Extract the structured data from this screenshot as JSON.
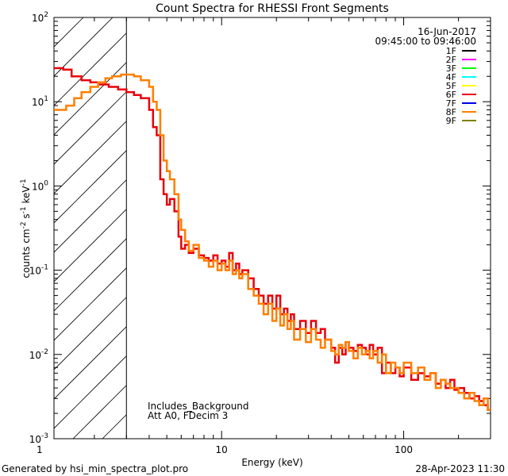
{
  "chart_data": {
    "type": "line",
    "title": "Count Spectra for RHESSI Front Segments",
    "xlabel": "Energy (keV)",
    "ylabel": "counts cm",
    "ylabel_exp1": "-2",
    "ylabel_mid": " s",
    "ylabel_exp2": "-1",
    "ylabel_mid2": " keV",
    "ylabel_exp3": "-1",
    "xscale": "log",
    "yscale": "log",
    "xlim": [
      1.2,
      300
    ],
    "ylim": [
      0.001,
      100
    ],
    "x_ticks": [
      {
        "value": 1,
        "label": "1"
      },
      {
        "value": 10,
        "label": "10"
      },
      {
        "value": 100,
        "label": "100"
      }
    ],
    "y_ticks": [
      {
        "value": 100,
        "base": "10",
        "exp": "2"
      },
      {
        "value": 10,
        "base": "10",
        "exp": "1"
      },
      {
        "value": 1,
        "base": "10",
        "exp": "0"
      },
      {
        "value": 0.1,
        "base": "10",
        "exp": "-1"
      },
      {
        "value": 0.01,
        "base": "10",
        "exp": "-2"
      },
      {
        "value": 0.001,
        "base": "10",
        "exp": "-3"
      }
    ],
    "date_label": "16-Jun-2017",
    "time_range_label": "09:45:00 to 09:46:00",
    "threshold_energy": 3,
    "annotation_lines": [
      "Includes_Background",
      "Att A0, FDecim 3"
    ],
    "legend": [
      {
        "name": "1F",
        "color": "#000000"
      },
      {
        "name": "2F",
        "color": "#ff00ff"
      },
      {
        "name": "3F",
        "color": "#00ff00"
      },
      {
        "name": "4F",
        "color": "#00ffff"
      },
      {
        "name": "5F",
        "color": "#ffff00"
      },
      {
        "name": "6F",
        "color": "#e8000b"
      },
      {
        "name": "7F",
        "color": "#0000e6"
      },
      {
        "name": "8F",
        "color": "#ff7f00"
      },
      {
        "name": "9F",
        "color": "#808000"
      }
    ],
    "series": [
      {
        "name": "6F",
        "color": "#e8000b",
        "points": [
          [
            1.2,
            25
          ],
          [
            1.35,
            24
          ],
          [
            1.5,
            20
          ],
          [
            1.7,
            18
          ],
          [
            1.9,
            17
          ],
          [
            2.1,
            16
          ],
          [
            2.4,
            15
          ],
          [
            2.7,
            14
          ],
          [
            3.0,
            13
          ],
          [
            3.3,
            12
          ],
          [
            3.6,
            11
          ],
          [
            4.0,
            8
          ],
          [
            4.2,
            5
          ],
          [
            4.4,
            4
          ],
          [
            4.6,
            1.2
          ],
          [
            4.8,
            0.8
          ],
          [
            5.0,
            0.6
          ],
          [
            5.2,
            0.7
          ],
          [
            5.5,
            0.5
          ],
          [
            5.8,
            0.25
          ],
          [
            6.0,
            0.18
          ],
          [
            6.3,
            0.2
          ],
          [
            6.6,
            0.16
          ],
          [
            7.0,
            0.18
          ],
          [
            7.5,
            0.15
          ],
          [
            8.0,
            0.14
          ],
          [
            8.5,
            0.13
          ],
          [
            9.0,
            0.15
          ],
          [
            9.5,
            0.12
          ],
          [
            10,
            0.13
          ],
          [
            10.5,
            0.11
          ],
          [
            11,
            0.16
          ],
          [
            11.5,
            0.1
          ],
          [
            12,
            0.12
          ],
          [
            12.5,
            0.09
          ],
          [
            13,
            0.1
          ],
          [
            14,
            0.08
          ],
          [
            15,
            0.06
          ],
          [
            16,
            0.05
          ],
          [
            17,
            0.04
          ],
          [
            18,
            0.05
          ],
          [
            19,
            0.035
          ],
          [
            20,
            0.05
          ],
          [
            21,
            0.03
          ],
          [
            22,
            0.035
          ],
          [
            23,
            0.025
          ],
          [
            24,
            0.03
          ],
          [
            25,
            0.02
          ],
          [
            27,
            0.025
          ],
          [
            29,
            0.018
          ],
          [
            31,
            0.025
          ],
          [
            33,
            0.018
          ],
          [
            35,
            0.02
          ],
          [
            37,
            0.015
          ],
          [
            40,
            0.012
          ],
          [
            42,
            0.008
          ],
          [
            44,
            0.012
          ],
          [
            46,
            0.01
          ],
          [
            48,
            0.014
          ],
          [
            50,
            0.012
          ],
          [
            53,
            0.011
          ],
          [
            56,
            0.013
          ],
          [
            59,
            0.012
          ],
          [
            62,
            0.01
          ],
          [
            65,
            0.013
          ],
          [
            68,
            0.01
          ],
          [
            72,
            0.012
          ],
          [
            76,
            0.006
          ],
          [
            80,
            0.008
          ],
          [
            85,
            0.006
          ],
          [
            90,
            0.007
          ],
          [
            95,
            0.0055
          ],
          [
            100,
            0.007
          ],
          [
            110,
            0.005
          ],
          [
            120,
            0.006
          ],
          [
            130,
            0.0055
          ],
          [
            140,
            0.006
          ],
          [
            150,
            0.0045
          ],
          [
            160,
            0.005
          ],
          [
            170,
            0.004
          ],
          [
            180,
            0.005
          ],
          [
            190,
            0.0038
          ],
          [
            200,
            0.004
          ],
          [
            215,
            0.0035
          ],
          [
            230,
            0.003
          ],
          [
            245,
            0.0032
          ],
          [
            260,
            0.0028
          ],
          [
            275,
            0.0025
          ],
          [
            290,
            0.0022
          ]
        ]
      },
      {
        "name": "8F",
        "color": "#ff7f00",
        "points": [
          [
            1.2,
            8
          ],
          [
            1.4,
            9
          ],
          [
            1.55,
            11
          ],
          [
            1.7,
            13
          ],
          [
            1.9,
            15
          ],
          [
            2.1,
            17
          ],
          [
            2.3,
            19
          ],
          [
            2.5,
            20
          ],
          [
            2.8,
            21
          ],
          [
            3.0,
            21
          ],
          [
            3.3,
            20
          ],
          [
            3.6,
            18
          ],
          [
            4.0,
            15
          ],
          [
            4.2,
            10
          ],
          [
            4.4,
            8
          ],
          [
            4.6,
            4
          ],
          [
            4.8,
            2
          ],
          [
            5.0,
            1.5
          ],
          [
            5.2,
            1.2
          ],
          [
            5.5,
            0.8
          ],
          [
            5.8,
            0.4
          ],
          [
            6.0,
            0.3
          ],
          [
            6.3,
            0.22
          ],
          [
            6.6,
            0.17
          ],
          [
            7.0,
            0.2
          ],
          [
            7.5,
            0.14
          ],
          [
            8.0,
            0.13
          ],
          [
            8.5,
            0.11
          ],
          [
            9.0,
            0.13
          ],
          [
            9.5,
            0.1
          ],
          [
            10,
            0.12
          ],
          [
            10.5,
            0.1
          ],
          [
            11,
            0.13
          ],
          [
            11.5,
            0.09
          ],
          [
            12,
            0.1
          ],
          [
            12.5,
            0.08
          ],
          [
            13,
            0.09
          ],
          [
            14,
            0.06
          ],
          [
            15,
            0.05
          ],
          [
            16,
            0.04
          ],
          [
            17,
            0.03
          ],
          [
            18,
            0.04
          ],
          [
            19,
            0.025
          ],
          [
            20,
            0.035
          ],
          [
            21,
            0.022
          ],
          [
            22,
            0.03
          ],
          [
            23,
            0.02
          ],
          [
            24,
            0.025
          ],
          [
            25,
            0.015
          ],
          [
            27,
            0.02
          ],
          [
            29,
            0.014
          ],
          [
            31,
            0.02
          ],
          [
            33,
            0.015
          ],
          [
            35,
            0.012
          ],
          [
            37,
            0.015
          ],
          [
            40,
            0.011
          ],
          [
            42,
            0.01
          ],
          [
            44,
            0.013
          ],
          [
            46,
            0.012
          ],
          [
            48,
            0.014
          ],
          [
            50,
            0.011
          ],
          [
            53,
            0.009
          ],
          [
            56,
            0.012
          ],
          [
            59,
            0.01
          ],
          [
            62,
            0.011
          ],
          [
            65,
            0.009
          ],
          [
            68,
            0.011
          ],
          [
            72,
            0.008
          ],
          [
            76,
            0.01
          ],
          [
            80,
            0.006
          ],
          [
            85,
            0.008
          ],
          [
            90,
            0.007
          ],
          [
            95,
            0.006
          ],
          [
            100,
            0.008
          ],
          [
            110,
            0.006
          ],
          [
            120,
            0.007
          ],
          [
            130,
            0.005
          ],
          [
            140,
            0.006
          ],
          [
            150,
            0.004
          ],
          [
            160,
            0.005
          ],
          [
            170,
            0.0045
          ],
          [
            180,
            0.004
          ],
          [
            190,
            0.004
          ],
          [
            200,
            0.0035
          ],
          [
            215,
            0.003
          ],
          [
            230,
            0.0035
          ],
          [
            245,
            0.0028
          ],
          [
            260,
            0.0025
          ],
          [
            275,
            0.003
          ],
          [
            290,
            0.0022
          ]
        ]
      }
    ]
  },
  "footer": {
    "generator": "Generated by hsi_min_spectra_plot.pro",
    "timestamp": "28-Apr-2023 11:30"
  }
}
